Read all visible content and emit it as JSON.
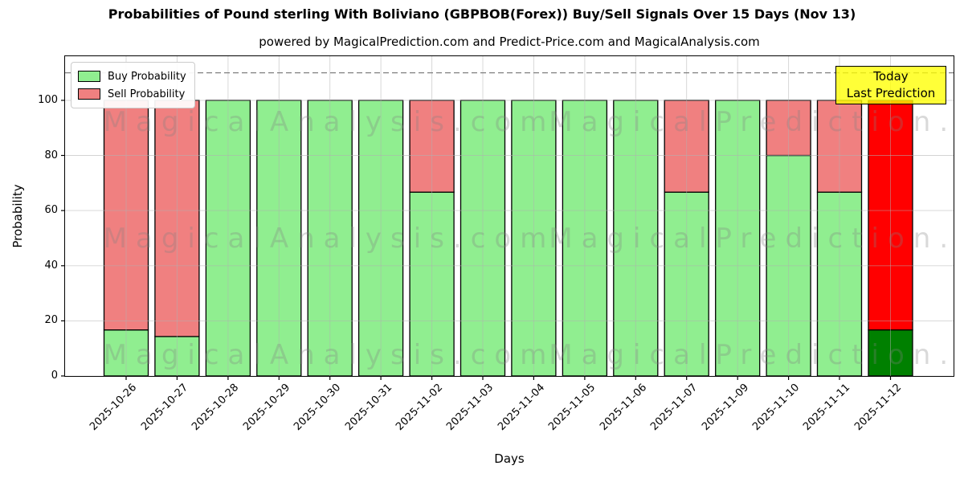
{
  "figure": {
    "title": "Probabilities of Pound sterling With Boliviano (GBPBOB(Forex)) Buy/Sell Signals Over 15 Days (Nov 13)",
    "subtitle": "powered by MagicalPrediction.com and Predict-Price.com and MagicalAnalysis.com"
  },
  "chart_data": {
    "type": "bar",
    "stacked": true,
    "title": "Probabilities of Pound sterling With Boliviano (GBPBOB(Forex)) Buy/Sell Signals Over 15 Days (Nov 13)",
    "xlabel": "Days",
    "ylabel": "Probability",
    "ylim": [
      0,
      116
    ],
    "yticks": [
      0,
      20,
      40,
      60,
      80,
      100
    ],
    "grid": true,
    "legend_position": "upper left",
    "categories": [
      "2025-10-26",
      "2025-10-27",
      "2025-10-28",
      "2025-10-29",
      "2025-10-30",
      "2025-10-31",
      "2025-11-02",
      "2025-11-03",
      "2025-11-04",
      "2025-11-05",
      "2025-11-06",
      "2025-11-07",
      "2025-11-09",
      "2025-11-10",
      "2025-11-11",
      "2025-11-12"
    ],
    "series": [
      {
        "name": "Buy Probability",
        "color": "#90EE90",
        "values": [
          16.7,
          14.3,
          100,
          100,
          100,
          100,
          66.7,
          100,
          100,
          100,
          100,
          66.7,
          100,
          80,
          66.7,
          16.7
        ]
      },
      {
        "name": "Sell Probability",
        "color": "#F08080",
        "values": [
          83.3,
          85.7,
          0,
          0,
          0,
          0,
          33.3,
          0,
          0,
          0,
          0,
          33.3,
          0,
          20,
          33.3,
          83.3
        ]
      }
    ],
    "today_bar": {
      "index": 15,
      "buy_color": "#008000",
      "sell_color": "#FF0000"
    },
    "threshold_line": {
      "value": 110,
      "style": "dashed",
      "color": "#808080"
    }
  },
  "annotation": {
    "lines": [
      "Today",
      "Last Prediction"
    ],
    "bg": "rgba(255,255,0,0.78)"
  },
  "watermarks": [
    "MagicalAnalysis.com",
    "MagicalPrediction.com"
  ]
}
